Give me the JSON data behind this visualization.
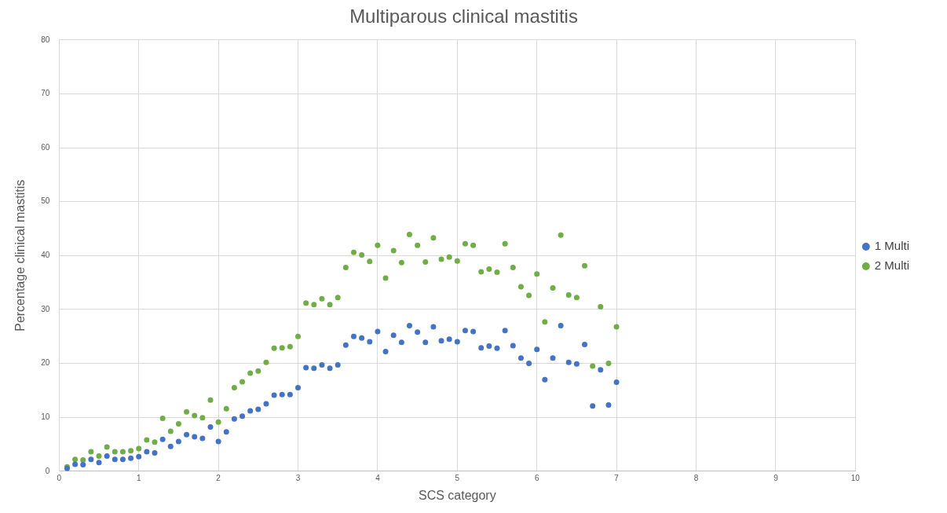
{
  "chart_data": {
    "type": "scatter",
    "title": "Multiparous clinical mastitis",
    "xlabel": "SCS category",
    "ylabel": "Percentage clinical mastitis",
    "x": [
      0.1,
      0.2,
      0.3,
      0.4,
      0.5,
      0.6,
      0.7,
      0.8,
      0.9,
      1.0,
      1.1,
      1.2,
      1.3,
      1.4,
      1.5,
      1.6,
      1.7,
      1.8,
      1.9,
      2.0,
      2.1,
      2.2,
      2.3,
      2.4,
      2.5,
      2.6,
      2.7,
      2.8,
      2.9,
      3.0,
      3.1,
      3.2,
      3.3,
      3.4,
      3.5,
      3.6,
      3.7,
      3.8,
      3.9,
      4.0,
      4.1,
      4.2,
      4.3,
      4.4,
      4.5,
      4.6,
      4.7,
      4.8,
      4.9,
      5.0,
      5.1,
      5.2,
      5.3,
      5.4,
      5.5,
      5.6,
      5.7,
      5.8,
      5.9,
      6.0,
      6.1,
      6.2,
      6.3,
      6.4,
      6.5,
      6.6,
      6.7,
      6.8,
      6.9,
      7.0
    ],
    "series": [
      {
        "name": "1 Multi",
        "color": "#4472c4",
        "values": [
          0.5,
          1.3,
          1.2,
          2.2,
          1.6,
          2.8,
          2.2,
          2.2,
          2.4,
          2.7,
          3.6,
          3.4,
          5.9,
          4.6,
          5.5,
          6.8,
          6.4,
          6.1,
          8.2,
          5.5,
          7.3,
          9.7,
          10.2,
          11.2,
          11.5,
          12.5,
          14.1,
          14.2,
          14.2,
          15.5,
          19.2,
          19.1,
          19.7,
          19.1,
          19.7,
          23.4,
          25,
          24.7,
          24,
          25.9,
          22.2,
          25.2,
          23.9,
          27,
          25.8,
          23.9,
          26.8,
          24.2,
          24.5,
          24,
          26.1,
          25.9,
          22.9,
          23.2,
          22.8,
          26.1,
          23.3,
          21,
          20,
          22.6,
          17,
          21,
          27,
          20.2,
          19.9,
          23.5,
          12.1,
          18.8,
          12.3,
          16.5
        ]
      },
      {
        "name": "2 Multi",
        "color": "#70ad47",
        "values": [
          0.8,
          2.2,
          2.1,
          3.6,
          2.8,
          4.5,
          3.6,
          3.6,
          3.8,
          4.2,
          5.8,
          5.4,
          9.8,
          7.4,
          8.8,
          11,
          10.3,
          9.9,
          13.2,
          9.1,
          11.6,
          15.5,
          16.6,
          18.2,
          18.6,
          20.2,
          22.8,
          22.9,
          23.1,
          25,
          31.2,
          30.9,
          32,
          30.9,
          32.2,
          37.8,
          40.6,
          40.1,
          38.9,
          41.9,
          35.8,
          40.9,
          38.7,
          43.9,
          41.9,
          38.8,
          43.3,
          39.3,
          39.7,
          39,
          42.2,
          41.9,
          37,
          37.5,
          36.9,
          42.2,
          37.8,
          34.2,
          32.6,
          36.6,
          27.7,
          34,
          43.8,
          32.7,
          32.2,
          38.1,
          19.5,
          30.5,
          20,
          26.8
        ]
      }
    ],
    "xlim": [
      0,
      10
    ],
    "xticks": [
      0,
      1,
      2,
      3,
      4,
      5,
      6,
      7,
      8,
      9,
      10
    ],
    "ylim": [
      0,
      80
    ],
    "yticks": [
      0,
      10,
      20,
      30,
      40,
      50,
      60,
      70,
      80
    ],
    "grid": true,
    "legend": "right",
    "marker": "circle"
  }
}
